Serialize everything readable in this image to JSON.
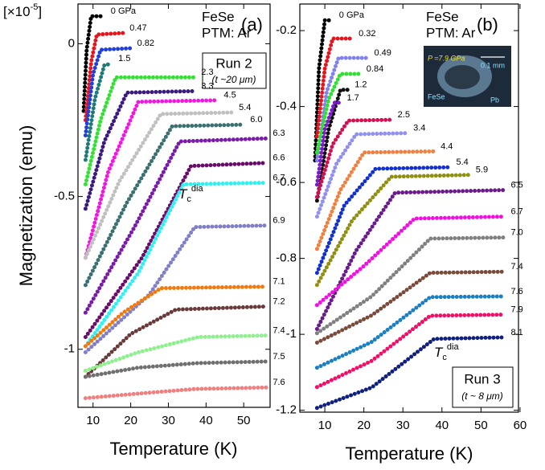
{
  "chart_data": [
    {
      "type": "line",
      "scale_label": {
        "text": "[×10",
        "exp": "-5",
        "close": "]"
      },
      "xlabel": "Temperature (K)",
      "ylabel": "Magnetization (emu)",
      "xlim": [
        6,
        57
      ],
      "ylim": [
        -1.19,
        0.13
      ],
      "xticks": [
        10,
        20,
        30,
        40,
        50
      ],
      "yticks": [
        0,
        -0.5,
        -1
      ],
      "annotations": {
        "sample": "FeSe",
        "ptm": "PTM: Ar",
        "panel": "(a)",
        "run": "Run 2",
        "thickness": "(t ~20 μm)"
      },
      "tc_label": {
        "symbol": "T",
        "sub": "c",
        "sup": "dia"
      },
      "series": [
        {
          "name": "0 GPa",
          "color": "#000000",
          "x": [
            7.5,
            8.3,
            9.5,
            13
          ],
          "values": [
            -0.22,
            -0.02,
            0.09,
            0.09
          ]
        },
        {
          "name": "0.47",
          "color": "#e8141c",
          "x": [
            8,
            9.5,
            11,
            18
          ],
          "values": [
            -0.25,
            -0.06,
            0.03,
            0.035
          ]
        },
        {
          "name": "0.82",
          "color": "#1f3fd8",
          "x": [
            8,
            10,
            12,
            20
          ],
          "values": [
            -0.3,
            -0.1,
            -0.02,
            -0.015
          ]
        },
        {
          "name": "1.5",
          "color": "#1e7a78",
          "x": [
            8,
            10.5,
            13,
            15
          ],
          "values": [
            -0.38,
            -0.18,
            -0.07,
            -0.065
          ]
        },
        {
          "name": "2.3",
          "color": "#33e033",
          "x": [
            8,
            12,
            16,
            37
          ],
          "values": [
            -0.46,
            -0.25,
            -0.11,
            -0.11
          ]
        },
        {
          "name": "3.3",
          "color": "#3a1a80",
          "x": [
            8,
            13,
            19,
            37
          ],
          "values": [
            -0.54,
            -0.32,
            -0.16,
            -0.155
          ]
        },
        {
          "name": "4.5",
          "color": "#f018e0",
          "x": [
            8,
            14,
            22,
            43
          ],
          "values": [
            -0.7,
            -0.42,
            -0.19,
            -0.185
          ]
        },
        {
          "name": "5.4",
          "color": "#c0c0c0",
          "x": [
            8,
            17,
            28,
            47
          ],
          "values": [
            -0.7,
            -0.45,
            -0.23,
            -0.225
          ]
        },
        {
          "name": "6.0",
          "color": "#3a7070",
          "x": [
            8,
            19,
            31,
            50
          ],
          "values": [
            -0.79,
            -0.52,
            -0.27,
            -0.265
          ]
        },
        {
          "name": "6.3",
          "color": "#7a1aa8",
          "x": [
            8,
            21,
            33,
            56
          ],
          "values": [
            -0.88,
            -0.6,
            -0.32,
            -0.31
          ]
        },
        {
          "name": "6.6",
          "color": "#6a0a6a",
          "x": [
            8,
            23,
            36,
            56
          ],
          "values": [
            -0.96,
            -0.7,
            -0.4,
            -0.39
          ]
        },
        {
          "name": "6.7",
          "color": "#30f0f0",
          "x": [
            8,
            22,
            34,
            56
          ],
          "values": [
            -0.99,
            -0.75,
            -0.46,
            -0.455
          ]
        },
        {
          "name": "6.9",
          "color": "#8080c8",
          "x": [
            8,
            25,
            37,
            56
          ],
          "values": [
            -1.01,
            -0.82,
            -0.6,
            -0.595
          ]
        },
        {
          "name": "7.1",
          "color": "#f07a10",
          "x": [
            8,
            18,
            28,
            56
          ],
          "values": [
            -0.99,
            -0.88,
            -0.8,
            -0.795
          ]
        },
        {
          "name": "7.2",
          "color": "#6a3a3a",
          "x": [
            8,
            20,
            32,
            56
          ],
          "values": [
            -1.09,
            -0.95,
            -0.87,
            -0.86
          ]
        },
        {
          "name": "7.4",
          "color": "#90f090",
          "x": [
            8,
            22,
            38,
            56
          ],
          "values": [
            -1.07,
            -1.01,
            -0.96,
            -0.955
          ]
        },
        {
          "name": "7.5",
          "color": "#707070",
          "x": [
            8,
            22,
            38,
            56
          ],
          "values": [
            -1.09,
            -1.06,
            -1.045,
            -1.04
          ]
        },
        {
          "name": "7.6",
          "color": "#f08080",
          "x": [
            8,
            22,
            37,
            56
          ],
          "values": [
            -1.16,
            -1.145,
            -1.13,
            -1.125
          ]
        }
      ]
    },
    {
      "type": "line",
      "xlabel": "Temperature (K)",
      "xlim": [
        3.6,
        59.6
      ],
      "ylim": [
        -1.205,
        -0.13
      ],
      "xticks": [
        10,
        20,
        30,
        40,
        50,
        60
      ],
      "yticks": [
        -0.2,
        -0.4,
        -0.6,
        -0.8,
        -1,
        -1.2
      ],
      "annotations": {
        "sample": "FeSe",
        "ptm": "PTM: Ar",
        "panel": "(b)",
        "run": "Run 3",
        "thickness": "(t ~ 8 μm)"
      },
      "tc_label": {
        "symbol": "T",
        "sub": "c",
        "sup": "dia"
      },
      "inset": {
        "pressure": "P =7.9 GPa",
        "scale": "0.1 mm",
        "sample": "FeSe",
        "ref": "Pb"
      },
      "series": [
        {
          "name": "0 GPa",
          "color": "#000000",
          "x": [
            7.5,
            8.5,
            10,
            12
          ],
          "values": [
            -0.542,
            -0.3,
            -0.173,
            -0.173
          ]
        },
        {
          "name": "0.32",
          "color": "#e8141c",
          "x": [
            8,
            10,
            12,
            17
          ],
          "values": [
            -0.479,
            -0.3,
            -0.221,
            -0.221
          ]
        },
        {
          "name": "0.49",
          "color": "#8080f0",
          "x": [
            8,
            10.5,
            13.5,
            21
          ],
          "values": [
            -0.542,
            -0.36,
            -0.272,
            -0.272
          ]
        },
        {
          "name": "0.84",
          "color": "#30e030",
          "x": [
            8,
            11,
            14,
            19
          ],
          "values": [
            -0.521,
            -0.38,
            -0.314,
            -0.314
          ]
        },
        {
          "name": "1.2",
          "color": "#101010",
          "x": [
            8,
            11,
            14,
            16
          ],
          "values": [
            -0.648,
            -0.46,
            -0.356,
            -0.356
          ]
        },
        {
          "name": "1.7",
          "color": "#7a1ac8",
          "x": [
            8,
            10,
            12.5,
            14
          ],
          "values": [
            -0.606,
            -0.46,
            -0.39,
            -0.39
          ]
        },
        {
          "name": "2.5",
          "color": "#d01050",
          "x": [
            8,
            12,
            16,
            27
          ],
          "values": [
            -0.638,
            -0.5,
            -0.437,
            -0.435
          ]
        },
        {
          "name": "3.4",
          "color": "#9090f0",
          "x": [
            8,
            13,
            18,
            31
          ],
          "values": [
            -0.69,
            -0.55,
            -0.473,
            -0.47
          ]
        },
        {
          "name": "4.4",
          "color": "#f08040",
          "x": [
            8,
            14,
            20,
            38
          ],
          "values": [
            -0.775,
            -0.62,
            -0.521,
            -0.518
          ]
        },
        {
          "name": "5.4",
          "color": "#1030d0",
          "x": [
            8,
            15,
            23,
            42
          ],
          "values": [
            -0.838,
            -0.66,
            -0.564,
            -0.56
          ]
        },
        {
          "name": "5.9",
          "color": "#909010",
          "x": [
            8,
            17,
            27,
            47
          ],
          "values": [
            -0.87,
            -0.7,
            -0.585,
            -0.58
          ]
        },
        {
          "name": "6.5",
          "color": "#6a1a8a",
          "x": [
            8,
            18,
            28,
            56
          ],
          "values": [
            -0.986,
            -0.78,
            -0.627,
            -0.62
          ]
        },
        {
          "name": "6.7",
          "color": "#f010e0",
          "x": [
            8,
            20,
            33,
            56
          ],
          "values": [
            -0.923,
            -0.82,
            -0.695,
            -0.69
          ]
        },
        {
          "name": "7.0",
          "color": "#808080",
          "x": [
            8,
            22,
            37,
            56
          ],
          "values": [
            -0.997,
            -0.9,
            -0.748,
            -0.745
          ]
        },
        {
          "name": "7.4",
          "color": "#7a4a3a",
          "x": [
            8,
            22,
            37,
            56
          ],
          "values": [
            -1.022,
            -0.95,
            -0.838,
            -0.835
          ]
        },
        {
          "name": "7.6",
          "color": "#1a80c0",
          "x": [
            8,
            22,
            37,
            56
          ],
          "values": [
            -1.088,
            -1.02,
            -0.902,
            -0.9
          ]
        },
        {
          "name": "7.9",
          "color": "#f0106a",
          "x": [
            8,
            22,
            37,
            56
          ],
          "values": [
            -1.139,
            -1.07,
            -0.951,
            -0.948
          ]
        },
        {
          "name": "8.1",
          "color": "#102080",
          "x": [
            8,
            22,
            38,
            56
          ],
          "values": [
            -1.194,
            -1.14,
            -1.012,
            -1.008
          ]
        }
      ]
    }
  ]
}
